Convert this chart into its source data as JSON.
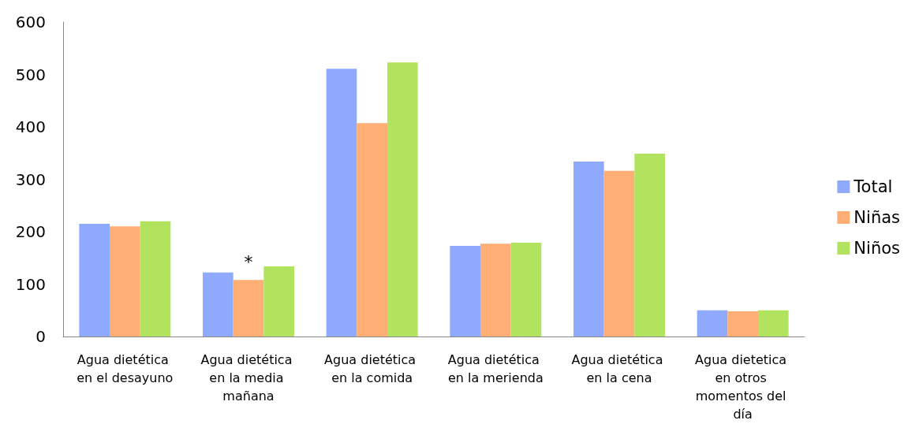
{
  "chart_data": {
    "type": "bar",
    "categories": [
      "Agua dietética en el desayuno",
      "Agua dietética en la media mañana",
      "Agua dietética en la comida",
      "Agua dietética en la merienda",
      "Agua dietética en la cena",
      "Agua dietetica en otros momentos del día"
    ],
    "series": [
      {
        "name": "Total",
        "color": "#8faafc",
        "values": [
          215,
          122,
          511,
          173,
          334,
          50
        ]
      },
      {
        "name": "Niñas",
        "color": "#ffae75",
        "values": [
          210,
          108,
          407,
          177,
          316,
          48
        ]
      },
      {
        "name": "Niños",
        "color": "#b2e35f",
        "values": [
          220,
          134,
          523,
          179,
          349,
          50
        ]
      }
    ],
    "ylim": [
      0,
      600
    ],
    "yticks": [
      0,
      100,
      200,
      300,
      400,
      500,
      600
    ],
    "annotations": [
      {
        "text": "*",
        "x": "Agua dietética en la media mañana",
        "y": 108
      }
    ],
    "grid": false,
    "legend": "right"
  }
}
